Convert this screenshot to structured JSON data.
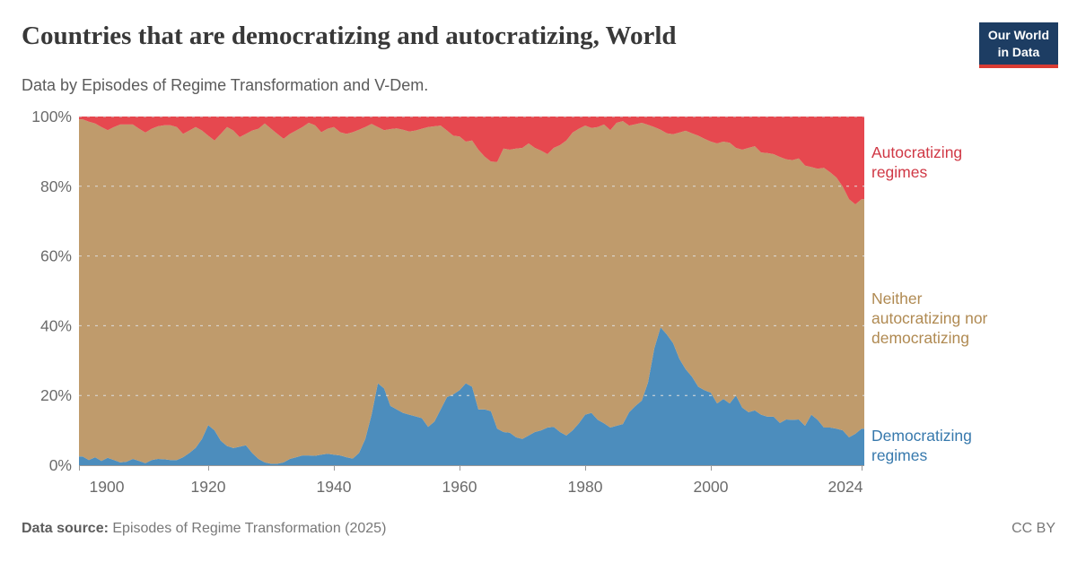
{
  "header": {
    "title": "Countries that are democratizing and autocratizing, World",
    "subtitle": "Data by Episodes of Regime Transformation and V-Dem.",
    "logo": {
      "line1": "Our World",
      "line2": "in Data",
      "bg_color": "#1d3d63",
      "bar_color": "#d93b33",
      "text_color": "#ffffff"
    }
  },
  "footer": {
    "source_label": "Data source:",
    "source_value": " Episodes of Regime Transformation (2025)",
    "license": "CC BY"
  },
  "chart_data": {
    "type": "area",
    "stacked": true,
    "stack_total_percent": 100,
    "title": "Countries that are democratizing and autocratizing, World",
    "subtitle": "Data by Episodes of Regime Transformation and V-Dem.",
    "xlabel": "",
    "ylabel": "",
    "y_unit": "%",
    "ylim": [
      0,
      100
    ],
    "xlim": [
      1900,
      2025
    ],
    "grid": "horizontal-dashed",
    "gridline_color": "#dddddd",
    "axis_text_color": "#6b6b6b",
    "legend_position": "right",
    "y_ticks": [
      "0%",
      "20%",
      "40%",
      "60%",
      "80%",
      "100%"
    ],
    "x_ticks": [
      1900,
      1920,
      1940,
      1960,
      1980,
      2000,
      2024
    ],
    "year_start": 1900,
    "year_end": 2024,
    "year_step": 1,
    "series": [
      {
        "id": "democratizing",
        "name": "Democratizing regimes",
        "color": "#4c8dbd",
        "label_color": "#3779ad",
        "values": [
          2.5,
          1.5,
          2.3,
          1.2,
          2.1,
          1.5,
          0.8,
          1.0,
          1.8,
          1.2,
          0.6,
          1.5,
          1.8,
          1.7,
          1.5,
          1.5,
          2.3,
          3.5,
          5.0,
          7.5,
          11.5,
          10.0,
          7.0,
          5.5,
          4.9,
          5.3,
          5.7,
          3.5,
          1.8,
          0.8,
          0.4,
          0.4,
          0.8,
          1.8,
          2.3,
          2.8,
          2.8,
          2.7,
          3.0,
          3.3,
          3.0,
          2.8,
          2.3,
          1.9,
          3.5,
          7.5,
          14.5,
          23.5,
          22.0,
          17.0,
          16.0,
          15.0,
          14.5,
          14.0,
          13.5,
          11.0,
          12.5,
          16.0,
          19.5,
          20.3,
          21.5,
          23.5,
          22.5,
          16.0,
          16.0,
          15.5,
          10.5,
          9.5,
          9.3,
          8.0,
          7.5,
          8.5,
          9.5,
          10.0,
          10.8,
          11.0,
          9.5,
          8.5,
          10.0,
          12.0,
          14.5,
          15.0,
          13.0,
          12.0,
          10.8,
          11.3,
          11.8,
          15.2,
          17.0,
          18.5,
          23.7,
          33.5,
          39.5,
          37.5,
          35.0,
          30.5,
          27.5,
          25.4,
          22.5,
          21.5,
          20.8,
          17.7,
          19.0,
          17.7,
          20.0,
          16.5,
          15.2,
          15.7,
          14.5,
          13.9,
          13.9,
          12.1,
          13.1,
          13.0,
          13.1,
          11.3,
          14.5,
          13.0,
          10.8,
          10.8,
          10.5,
          10.0,
          8.0,
          9.0,
          10.5
        ]
      },
      {
        "id": "neither",
        "name": "Neither autocratizing nor democratizing",
        "color": "#bf9b6c",
        "label_color": "#b08a52",
        "derived_from": "remainder_to_100"
      },
      {
        "id": "autocratizing",
        "name": "Autocratizing regimes",
        "color": "#e6484f",
        "label_color": "#d03845",
        "values": [
          0.8,
          1.5,
          2.0,
          3.0,
          3.9,
          3.0,
          2.3,
          2.3,
          2.3,
          3.5,
          4.6,
          3.5,
          2.8,
          2.5,
          2.5,
          3.0,
          5.0,
          4.0,
          3.0,
          4.0,
          5.5,
          6.9,
          5.0,
          3.0,
          4.0,
          5.9,
          5.0,
          4.0,
          3.5,
          2.0,
          3.5,
          5.0,
          6.4,
          5.0,
          4.0,
          3.0,
          1.8,
          2.5,
          4.5,
          3.5,
          3.0,
          4.5,
          5.0,
          4.5,
          3.8,
          3.0,
          2.1,
          3.0,
          3.9,
          3.6,
          3.4,
          3.8,
          4.3,
          4.0,
          3.5,
          3.0,
          2.8,
          2.6,
          4.0,
          5.5,
          5.7,
          7.2,
          6.9,
          9.5,
          11.5,
          12.9,
          13.0,
          9.2,
          9.5,
          9.2,
          9.0,
          7.7,
          9.0,
          9.8,
          10.8,
          9.0,
          8.2,
          6.9,
          4.6,
          3.5,
          2.6,
          3.3,
          3.0,
          2.3,
          3.9,
          1.8,
          1.3,
          2.6,
          2.2,
          1.8,
          2.4,
          3.0,
          3.8,
          4.8,
          5.1,
          4.6,
          4.1,
          4.8,
          5.5,
          6.4,
          7.2,
          7.7,
          7.2,
          7.5,
          9.0,
          9.5,
          9.0,
          8.5,
          10.3,
          10.5,
          10.8,
          11.6,
          12.3,
          12.5,
          12.0,
          14.1,
          14.5,
          15.0,
          14.7,
          16.0,
          17.5,
          20.1,
          23.7,
          25.2,
          23.7
        ]
      }
    ]
  }
}
